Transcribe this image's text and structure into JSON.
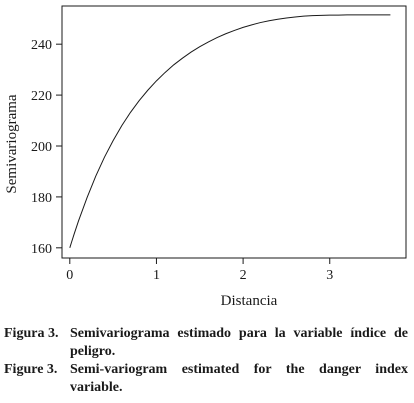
{
  "chart_data": {
    "type": "line",
    "title": "",
    "xlabel": "Distancia",
    "ylabel": "Semivariograma",
    "xlim": [
      -0.09,
      3.88
    ],
    "ylim": [
      156,
      255
    ],
    "x_ticks": [
      0,
      1,
      2,
      3
    ],
    "y_ticks": [
      160,
      180,
      200,
      220,
      240
    ],
    "grid": false,
    "legend": "none",
    "line_color": "#1a1a1a",
    "series": [
      {
        "x": [
          0.0,
          0.02,
          0.05,
          0.1,
          0.2,
          0.3,
          0.4,
          0.5,
          0.6,
          0.7,
          0.8,
          0.9,
          1.0,
          1.1,
          1.2,
          1.3,
          1.4,
          1.5,
          1.6,
          1.7,
          1.8,
          1.9,
          2.0,
          2.1,
          2.2,
          2.3,
          2.4,
          2.5,
          2.6,
          2.7,
          2.8,
          2.9,
          3.0,
          3.1,
          3.2,
          3.3,
          3.4,
          3.5,
          3.6,
          3.7
        ],
        "y": [
          160.0,
          162.2,
          165.4,
          170.5,
          179.8,
          188.2,
          195.6,
          202.1,
          208.0,
          213.2,
          217.8,
          221.9,
          225.6,
          228.9,
          231.9,
          234.5,
          236.9,
          239.0,
          240.9,
          242.6,
          244.1,
          245.4,
          246.6,
          247.6,
          248.5,
          249.2,
          249.8,
          250.3,
          250.7,
          251.0,
          251.2,
          251.3,
          251.4,
          251.4,
          251.5,
          251.5,
          251.5,
          251.5,
          251.5,
          251.5
        ]
      }
    ]
  },
  "captions": {
    "es": {
      "label": "Figura 3.",
      "text": "Semivariograma estimado para la variable índice de peligro."
    },
    "en": {
      "label": "Figure 3.",
      "text": "Semi-variogram estimated for the danger index variable."
    }
  }
}
